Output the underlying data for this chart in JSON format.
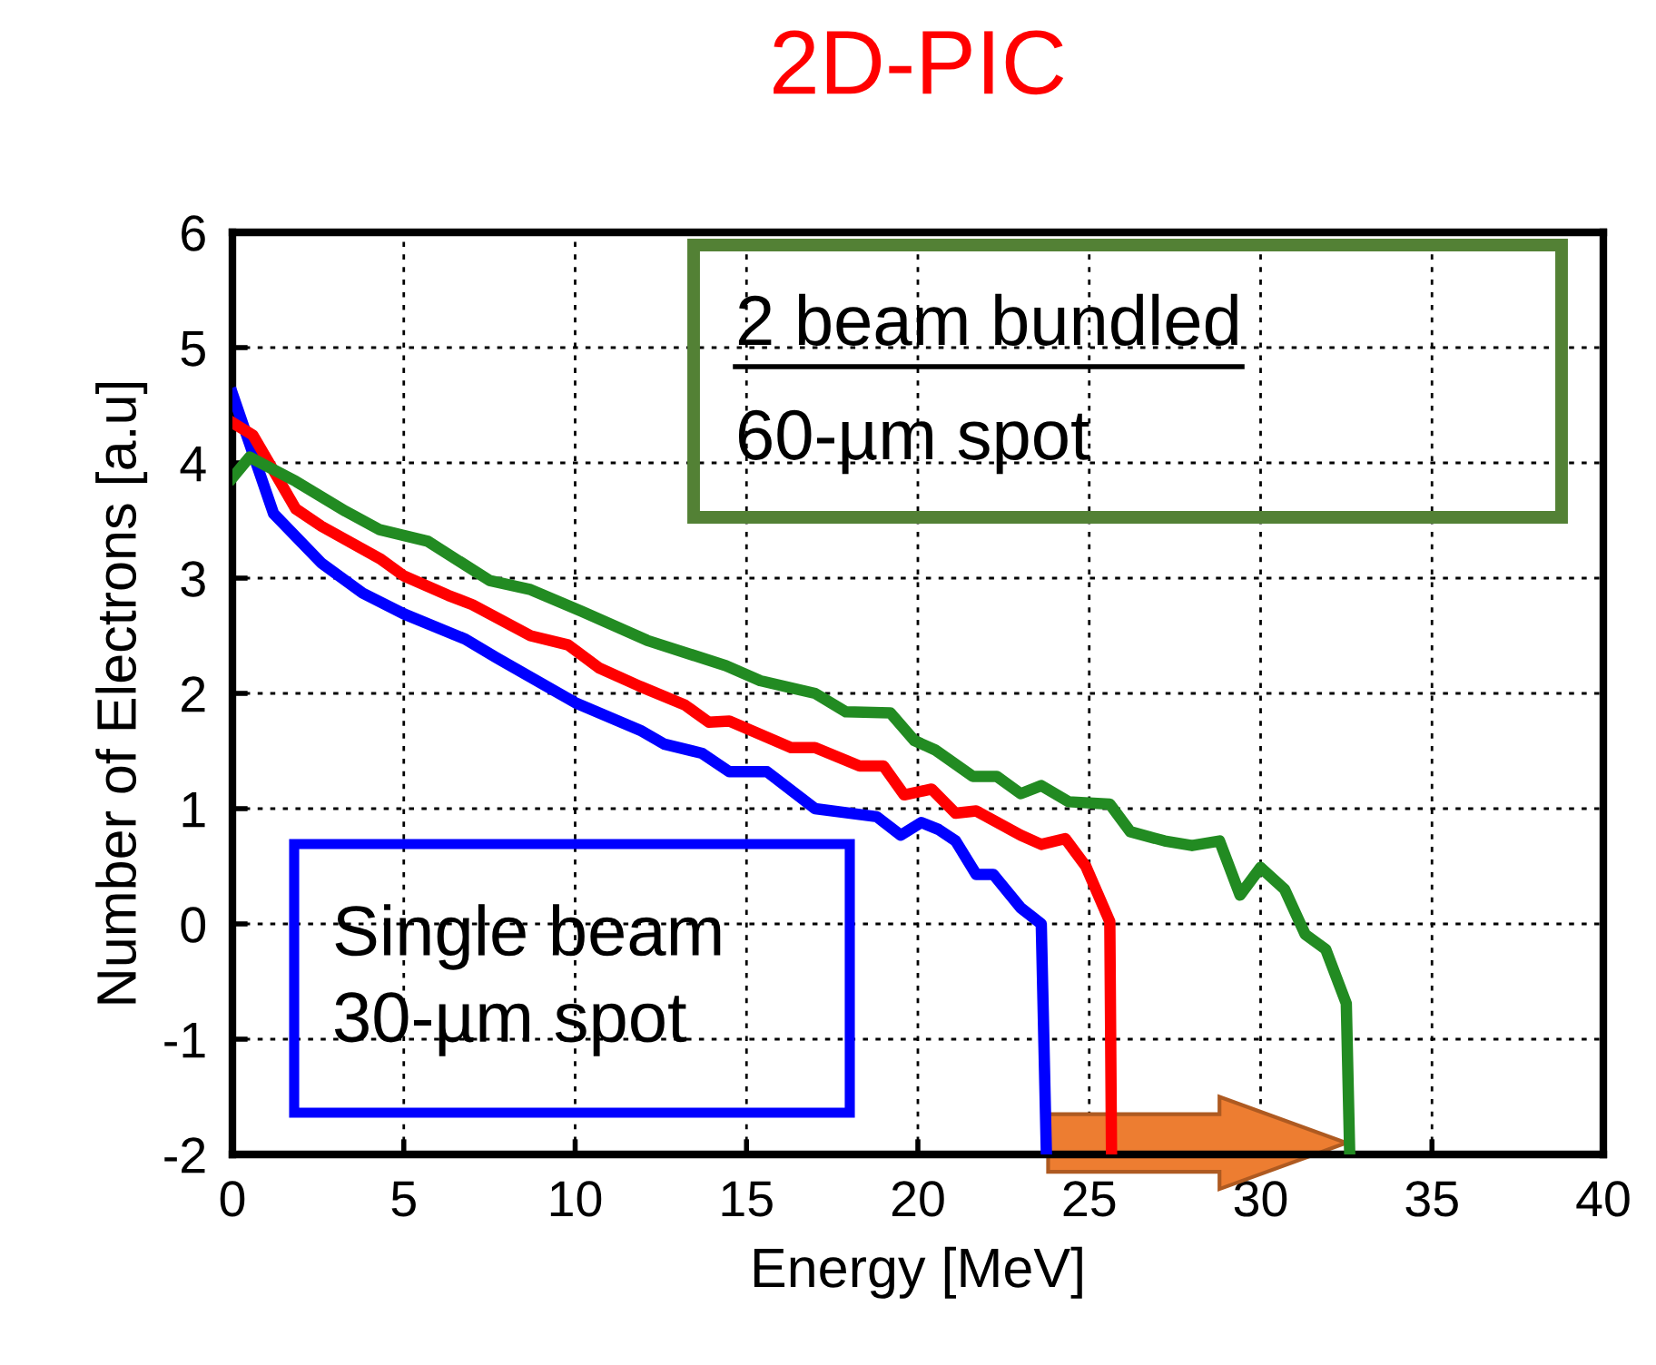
{
  "chart_data": {
    "type": "line",
    "title": "2D-PIC",
    "xlabel": "Energy [MeV]",
    "ylabel": "Number of Electrons [a.u]",
    "xlim": [
      0,
      40
    ],
    "xticks": [
      0,
      5,
      10,
      15,
      20,
      25,
      30,
      35,
      40
    ],
    "ylim": [
      -2,
      6
    ],
    "yticks": [
      -2,
      -1,
      0,
      1,
      2,
      3,
      4,
      5,
      6
    ],
    "grid": true,
    "line_style": "solid",
    "series": [
      {
        "color": "#0000ff",
        "x": [
          0,
          1.2,
          2.6,
          3.8,
          5.0,
          6.8,
          7.7,
          10.0,
          11.9,
          12.6,
          13.7,
          14.5,
          15.6,
          17.0,
          18.8,
          19.5,
          20.1,
          20.6,
          21.1,
          21.7,
          22.2,
          23.0,
          23.6,
          23.75
        ],
        "values": [
          4.6,
          3.56,
          3.13,
          2.87,
          2.69,
          2.47,
          2.31,
          1.92,
          1.68,
          1.56,
          1.48,
          1.32,
          1.32,
          1.0,
          0.93,
          0.77,
          0.88,
          0.82,
          0.72,
          0.43,
          0.43,
          0.14,
          0.0,
          -2.0
        ]
      },
      {
        "color": "#ff0000",
        "x": [
          0,
          0.6,
          1.85,
          2.6,
          4.3,
          5.0,
          6.3,
          7.0,
          8.7,
          9.8,
          10.7,
          11.9,
          13.2,
          13.9,
          14.5,
          16.3,
          17.0,
          18.3,
          19.0,
          19.6,
          20.4,
          21.1,
          21.7,
          23.0,
          23.6,
          24.3,
          24.9,
          25.6,
          25.65
        ],
        "values": [
          4.35,
          4.24,
          3.6,
          3.45,
          3.17,
          3.02,
          2.85,
          2.77,
          2.5,
          2.42,
          2.22,
          2.06,
          1.9,
          1.75,
          1.76,
          1.53,
          1.53,
          1.37,
          1.37,
          1.12,
          1.17,
          0.96,
          0.98,
          0.77,
          0.69,
          0.74,
          0.5,
          0.02,
          -2.0
        ]
      },
      {
        "color": "#228b22",
        "x": [
          0,
          0.5,
          1.85,
          3.3,
          4.3,
          5.7,
          7.5,
          8.7,
          10.2,
          12.1,
          14.4,
          15.4,
          17.0,
          17.9,
          19.2,
          19.9,
          20.5,
          21.6,
          22.3,
          23.0,
          23.6,
          24.4,
          25.6,
          26.2,
          27.2,
          28.0,
          28.8,
          29.4,
          30.0,
          30.7,
          31.3,
          31.9,
          32.5,
          32.6
        ],
        "values": [
          3.87,
          4.05,
          3.84,
          3.58,
          3.42,
          3.32,
          2.98,
          2.9,
          2.71,
          2.46,
          2.24,
          2.11,
          2.0,
          1.84,
          1.83,
          1.59,
          1.51,
          1.28,
          1.28,
          1.13,
          1.2,
          1.06,
          1.04,
          0.8,
          0.72,
          0.68,
          0.72,
          0.25,
          0.49,
          0.3,
          -0.09,
          -0.22,
          -0.69,
          -2.0
        ]
      }
    ],
    "annotations": [
      "2 beam bundled",
      "60-µm spot",
      "Single beam\n30-µm spot"
    ]
  }
}
